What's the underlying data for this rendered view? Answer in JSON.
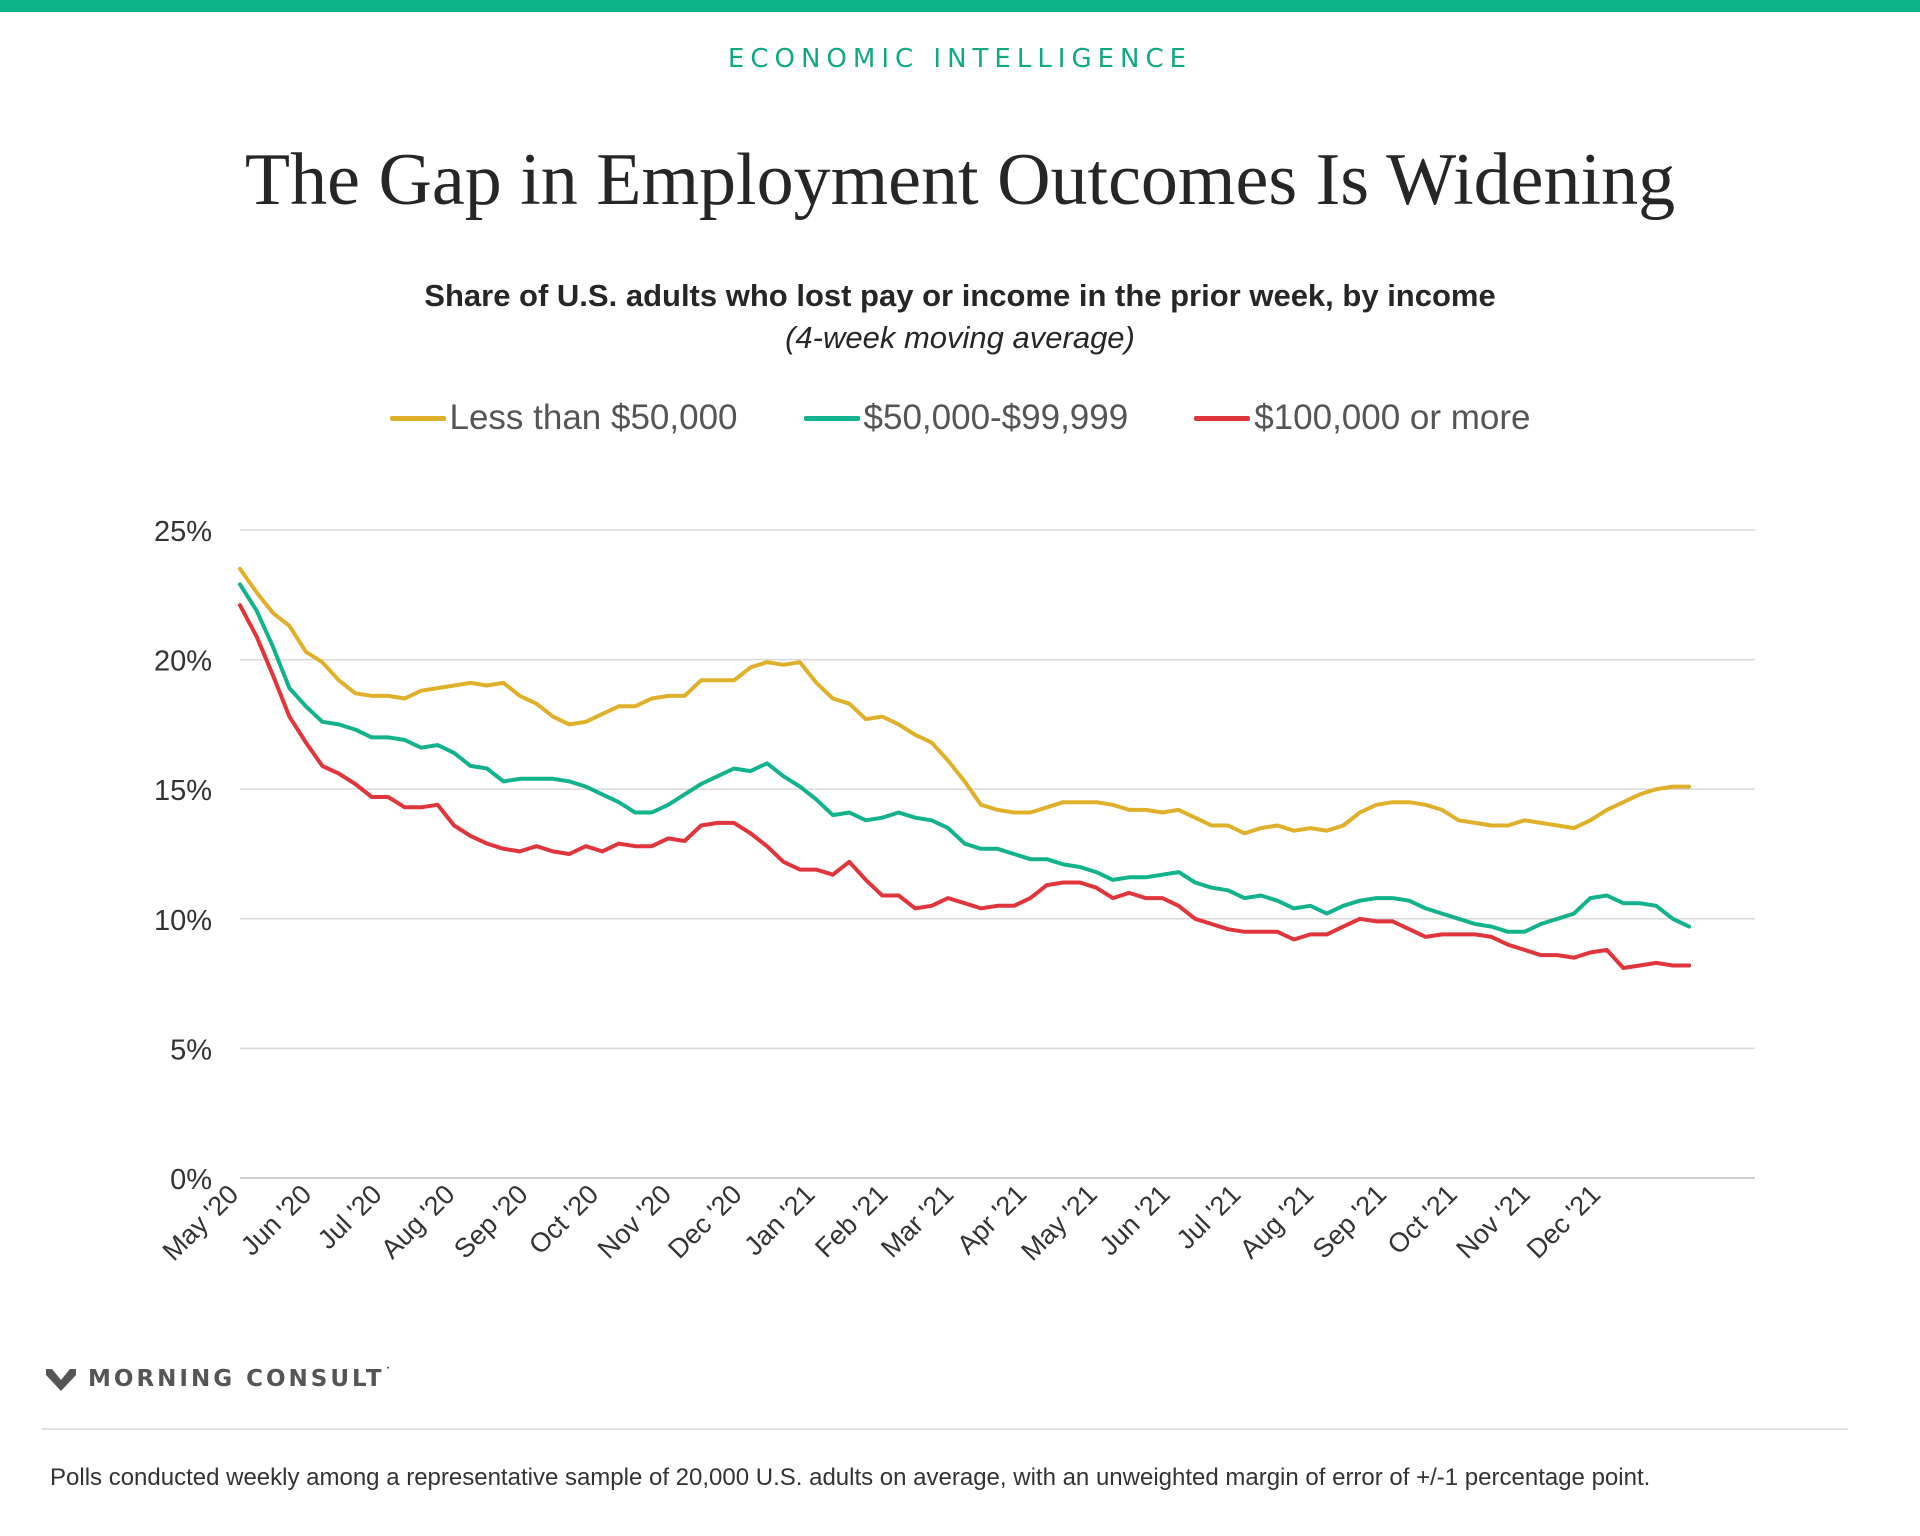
{
  "header": {
    "eyebrow": "ECONOMIC INTELLIGENCE",
    "title": "The Gap in Employment Outcomes Is Widening",
    "subtitle": "Share of U.S. adults who lost pay or income in the prior week, by income",
    "subtitle_note": "(4-week moving average)"
  },
  "brand": {
    "name": "MORNING CONSULT",
    "mark": "˙"
  },
  "footnote": "Polls conducted weekly among a representative sample of 20,000 U.S. adults on average, with an unweighted margin of error of +/-1 percentage point.",
  "colors": {
    "accent": "#0fb38a",
    "series_low": "#e0b02a",
    "series_mid": "#12b38c",
    "series_high": "#e0353b",
    "grid": "#d9d9d9"
  },
  "chart_data": {
    "type": "line",
    "title": "Share of U.S. adults who lost pay or income in the prior week, by income",
    "ylim": [
      0,
      25
    ],
    "yticks": [
      0,
      5,
      10,
      15,
      20,
      25
    ],
    "ytick_labels": [
      "0%",
      "5%",
      "10%",
      "15%",
      "20%",
      "25%"
    ],
    "x_tick_labels": [
      "May '20",
      "Jun '20",
      "Jul '20",
      "Aug '20",
      "Sep '20",
      "Oct '20",
      "Nov '20",
      "Dec '20",
      "Jan '21",
      "Feb '21",
      "Mar '21",
      "Apr '21",
      "May '21",
      "Jun '21",
      "Jul '21",
      "Aug '21",
      "Sep '21",
      "Oct '21",
      "Nov '21",
      "Dec '21"
    ],
    "x_tick_positions": [
      0,
      4.43,
      8.71,
      13.14,
      17.57,
      21.86,
      26.29,
      30.57,
      35,
      39.43,
      43.43,
      47.86,
      52.14,
      56.57,
      60.86,
      65.29,
      69.71,
      74,
      78.43,
      82.71
    ],
    "x_range": [
      0,
      92
    ],
    "grid": true,
    "legend": "top-center",
    "series": [
      {
        "name": "Less than $50,000",
        "color": "#e0b02a",
        "points": [
          [
            0,
            23.5
          ],
          [
            1,
            22.6
          ],
          [
            2,
            21.8
          ],
          [
            3,
            21.3
          ],
          [
            4,
            20.3
          ],
          [
            5,
            19.9
          ],
          [
            6,
            19.2
          ],
          [
            7,
            18.7
          ],
          [
            8,
            18.6
          ],
          [
            9,
            18.6
          ],
          [
            10,
            18.5
          ],
          [
            11,
            18.8
          ],
          [
            12,
            18.9
          ],
          [
            13,
            19.0
          ],
          [
            14,
            19.1
          ],
          [
            15,
            19.0
          ],
          [
            16,
            19.1
          ],
          [
            17,
            18.6
          ],
          [
            18,
            18.3
          ],
          [
            19,
            17.8
          ],
          [
            20,
            17.5
          ],
          [
            21,
            17.6
          ],
          [
            22,
            17.9
          ],
          [
            23,
            18.2
          ],
          [
            24,
            18.2
          ],
          [
            25,
            18.5
          ],
          [
            26,
            18.6
          ],
          [
            27,
            18.6
          ],
          [
            28,
            19.2
          ],
          [
            29,
            19.2
          ],
          [
            30,
            19.2
          ],
          [
            31,
            19.7
          ],
          [
            32,
            19.9
          ],
          [
            33,
            19.8
          ],
          [
            34,
            19.9
          ],
          [
            35,
            19.1
          ],
          [
            36,
            18.5
          ],
          [
            37,
            18.3
          ],
          [
            38,
            17.7
          ],
          [
            39,
            17.8
          ],
          [
            40,
            17.5
          ],
          [
            41,
            17.1
          ],
          [
            42,
            16.8
          ],
          [
            43,
            16.1
          ],
          [
            44,
            15.3
          ],
          [
            45,
            14.4
          ],
          [
            46,
            14.2
          ],
          [
            47,
            14.1
          ],
          [
            48,
            14.1
          ],
          [
            49,
            14.3
          ],
          [
            50,
            14.5
          ],
          [
            51,
            14.5
          ],
          [
            52,
            14.5
          ],
          [
            53,
            14.4
          ],
          [
            54,
            14.2
          ],
          [
            55,
            14.2
          ],
          [
            56,
            14.1
          ],
          [
            57,
            14.2
          ],
          [
            58,
            13.9
          ],
          [
            59,
            13.6
          ],
          [
            60,
            13.6
          ],
          [
            61,
            13.3
          ],
          [
            62,
            13.5
          ],
          [
            63,
            13.6
          ],
          [
            64,
            13.4
          ],
          [
            65,
            13.5
          ],
          [
            66,
            13.4
          ],
          [
            67,
            13.6
          ],
          [
            68,
            14.1
          ],
          [
            69,
            14.4
          ],
          [
            70,
            14.5
          ],
          [
            71,
            14.5
          ],
          [
            72,
            14.4
          ],
          [
            73,
            14.2
          ],
          [
            74,
            13.8
          ],
          [
            75,
            13.7
          ],
          [
            76,
            13.6
          ],
          [
            77,
            13.6
          ],
          [
            78,
            13.8
          ],
          [
            79,
            13.7
          ],
          [
            80,
            13.6
          ],
          [
            81,
            13.5
          ],
          [
            82,
            13.8
          ],
          [
            83,
            14.2
          ],
          [
            84,
            14.5
          ],
          [
            85,
            14.8
          ],
          [
            86,
            15.0
          ],
          [
            87,
            15.1
          ],
          [
            88,
            15.1
          ]
        ]
      },
      {
        "name": "$50,000-$99,999",
        "color": "#12b38c",
        "points": [
          [
            0,
            22.9
          ],
          [
            1,
            21.9
          ],
          [
            2,
            20.5
          ],
          [
            3,
            18.9
          ],
          [
            4,
            18.2
          ],
          [
            5,
            17.6
          ],
          [
            6,
            17.5
          ],
          [
            7,
            17.3
          ],
          [
            8,
            17.0
          ],
          [
            9,
            17.0
          ],
          [
            10,
            16.9
          ],
          [
            11,
            16.6
          ],
          [
            12,
            16.7
          ],
          [
            13,
            16.4
          ],
          [
            14,
            15.9
          ],
          [
            15,
            15.8
          ],
          [
            16,
            15.3
          ],
          [
            17,
            15.4
          ],
          [
            18,
            15.4
          ],
          [
            19,
            15.4
          ],
          [
            20,
            15.3
          ],
          [
            21,
            15.1
          ],
          [
            22,
            14.8
          ],
          [
            23,
            14.5
          ],
          [
            24,
            14.1
          ],
          [
            25,
            14.1
          ],
          [
            26,
            14.4
          ],
          [
            27,
            14.8
          ],
          [
            28,
            15.2
          ],
          [
            29,
            15.5
          ],
          [
            30,
            15.8
          ],
          [
            31,
            15.7
          ],
          [
            32,
            16.0
          ],
          [
            33,
            15.5
          ],
          [
            34,
            15.1
          ],
          [
            35,
            14.6
          ],
          [
            36,
            14.0
          ],
          [
            37,
            14.1
          ],
          [
            38,
            13.8
          ],
          [
            39,
            13.9
          ],
          [
            40,
            14.1
          ],
          [
            41,
            13.9
          ],
          [
            42,
            13.8
          ],
          [
            43,
            13.5
          ],
          [
            44,
            12.9
          ],
          [
            45,
            12.7
          ],
          [
            46,
            12.7
          ],
          [
            47,
            12.5
          ],
          [
            48,
            12.3
          ],
          [
            49,
            12.3
          ],
          [
            50,
            12.1
          ],
          [
            51,
            12.0
          ],
          [
            52,
            11.8
          ],
          [
            53,
            11.5
          ],
          [
            54,
            11.6
          ],
          [
            55,
            11.6
          ],
          [
            56,
            11.7
          ],
          [
            57,
            11.8
          ],
          [
            58,
            11.4
          ],
          [
            59,
            11.2
          ],
          [
            60,
            11.1
          ],
          [
            61,
            10.8
          ],
          [
            62,
            10.9
          ],
          [
            63,
            10.7
          ],
          [
            64,
            10.4
          ],
          [
            65,
            10.5
          ],
          [
            66,
            10.2
          ],
          [
            67,
            10.5
          ],
          [
            68,
            10.7
          ],
          [
            69,
            10.8
          ],
          [
            70,
            10.8
          ],
          [
            71,
            10.7
          ],
          [
            72,
            10.4
          ],
          [
            73,
            10.2
          ],
          [
            74,
            10.0
          ],
          [
            75,
            9.8
          ],
          [
            76,
            9.7
          ],
          [
            77,
            9.5
          ],
          [
            78,
            9.5
          ],
          [
            79,
            9.8
          ],
          [
            80,
            10.0
          ],
          [
            81,
            10.2
          ],
          [
            82,
            10.8
          ],
          [
            83,
            10.9
          ],
          [
            84,
            10.6
          ],
          [
            85,
            10.6
          ],
          [
            86,
            10.5
          ],
          [
            87,
            10.0
          ],
          [
            88,
            9.7
          ]
        ]
      },
      {
        "name": "$100,000 or more",
        "color": "#e0353b",
        "points": [
          [
            0,
            22.1
          ],
          [
            1,
            20.9
          ],
          [
            2,
            19.4
          ],
          [
            3,
            17.8
          ],
          [
            4,
            16.8
          ],
          [
            5,
            15.9
          ],
          [
            6,
            15.6
          ],
          [
            7,
            15.2
          ],
          [
            8,
            14.7
          ],
          [
            9,
            14.7
          ],
          [
            10,
            14.3
          ],
          [
            11,
            14.3
          ],
          [
            12,
            14.4
          ],
          [
            13,
            13.6
          ],
          [
            14,
            13.2
          ],
          [
            15,
            12.9
          ],
          [
            16,
            12.7
          ],
          [
            17,
            12.6
          ],
          [
            18,
            12.8
          ],
          [
            19,
            12.6
          ],
          [
            20,
            12.5
          ],
          [
            21,
            12.8
          ],
          [
            22,
            12.6
          ],
          [
            23,
            12.9
          ],
          [
            24,
            12.8
          ],
          [
            25,
            12.8
          ],
          [
            26,
            13.1
          ],
          [
            27,
            13.0
          ],
          [
            28,
            13.6
          ],
          [
            29,
            13.7
          ],
          [
            30,
            13.7
          ],
          [
            31,
            13.3
          ],
          [
            32,
            12.8
          ],
          [
            33,
            12.2
          ],
          [
            34,
            11.9
          ],
          [
            35,
            11.9
          ],
          [
            36,
            11.7
          ],
          [
            37,
            12.2
          ],
          [
            38,
            11.5
          ],
          [
            39,
            10.9
          ],
          [
            40,
            10.9
          ],
          [
            41,
            10.4
          ],
          [
            42,
            10.5
          ],
          [
            43,
            10.8
          ],
          [
            44,
            10.6
          ],
          [
            45,
            10.4
          ],
          [
            46,
            10.5
          ],
          [
            47,
            10.5
          ],
          [
            48,
            10.8
          ],
          [
            49,
            11.3
          ],
          [
            50,
            11.4
          ],
          [
            51,
            11.4
          ],
          [
            52,
            11.2
          ],
          [
            53,
            10.8
          ],
          [
            54,
            11.0
          ],
          [
            55,
            10.8
          ],
          [
            56,
            10.8
          ],
          [
            57,
            10.5
          ],
          [
            58,
            10.0
          ],
          [
            59,
            9.8
          ],
          [
            60,
            9.6
          ],
          [
            61,
            9.5
          ],
          [
            62,
            9.5
          ],
          [
            63,
            9.5
          ],
          [
            64,
            9.2
          ],
          [
            65,
            9.4
          ],
          [
            66,
            9.4
          ],
          [
            67,
            9.7
          ],
          [
            68,
            10.0
          ],
          [
            69,
            9.9
          ],
          [
            70,
            9.9
          ],
          [
            71,
            9.6
          ],
          [
            72,
            9.3
          ],
          [
            73,
            9.4
          ],
          [
            74,
            9.4
          ],
          [
            75,
            9.4
          ],
          [
            76,
            9.3
          ],
          [
            77,
            9.0
          ],
          [
            78,
            8.8
          ],
          [
            79,
            8.6
          ],
          [
            80,
            8.6
          ],
          [
            81,
            8.5
          ],
          [
            82,
            8.7
          ],
          [
            83,
            8.8
          ],
          [
            84,
            8.1
          ],
          [
            85,
            8.2
          ],
          [
            86,
            8.3
          ],
          [
            87,
            8.2
          ],
          [
            88,
            8.2
          ]
        ]
      }
    ]
  }
}
